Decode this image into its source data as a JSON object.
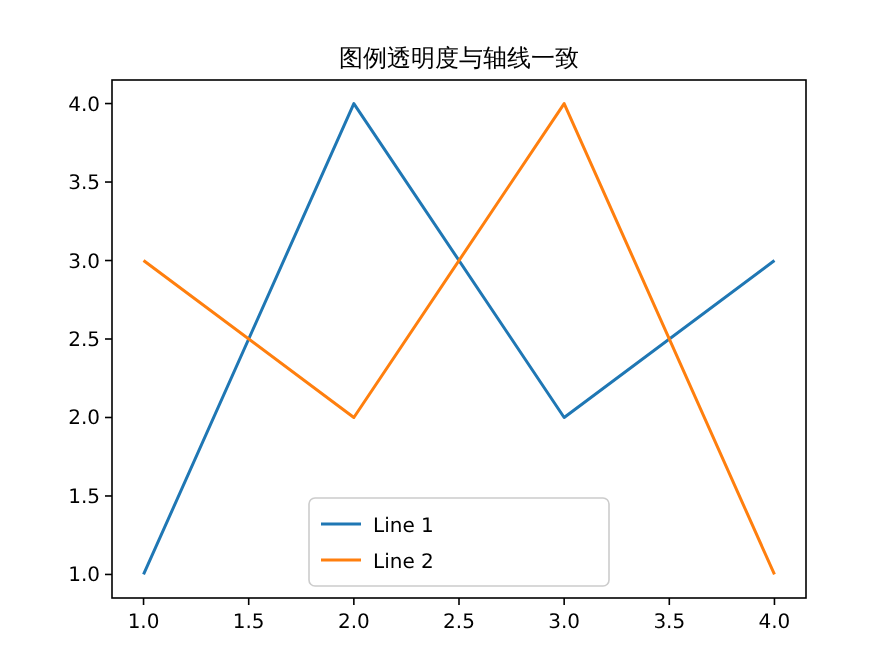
{
  "chart_data": {
    "type": "line",
    "title": "图例透明度与轴线一致",
    "x": [
      1,
      2,
      3,
      4
    ],
    "series": [
      {
        "name": "Line 1",
        "color": "#1f77b4",
        "values": [
          1,
          4,
          2,
          3
        ]
      },
      {
        "name": "Line 2",
        "color": "#ff7f0e",
        "values": [
          3,
          2,
          4,
          1
        ]
      }
    ],
    "xlim": [
      0.85,
      4.15
    ],
    "xticks": [
      {
        "value": 1,
        "label": "1.0"
      },
      {
        "value": 1.5,
        "label": "1.5"
      },
      {
        "value": 2,
        "label": "2.0"
      },
      {
        "value": 2.5,
        "label": "2.5"
      },
      {
        "value": 3,
        "label": "3.0"
      },
      {
        "value": 3.5,
        "label": "3.5"
      },
      {
        "value": 4,
        "label": "4.0"
      }
    ],
    "ylim": [
      0.85,
      4.15
    ],
    "yticks": [
      {
        "value": 1,
        "label": "1.0"
      },
      {
        "value": 1.5,
        "label": "1.5"
      },
      {
        "value": 2,
        "label": "2.0"
      },
      {
        "value": 2.5,
        "label": "2.5"
      },
      {
        "value": 3,
        "label": "3.0"
      },
      {
        "value": 3.5,
        "label": "3.5"
      },
      {
        "value": 4,
        "label": "4.0"
      }
    ],
    "grid": false,
    "legend": "bottom",
    "marker": "none",
    "line_style": "solid"
  }
}
